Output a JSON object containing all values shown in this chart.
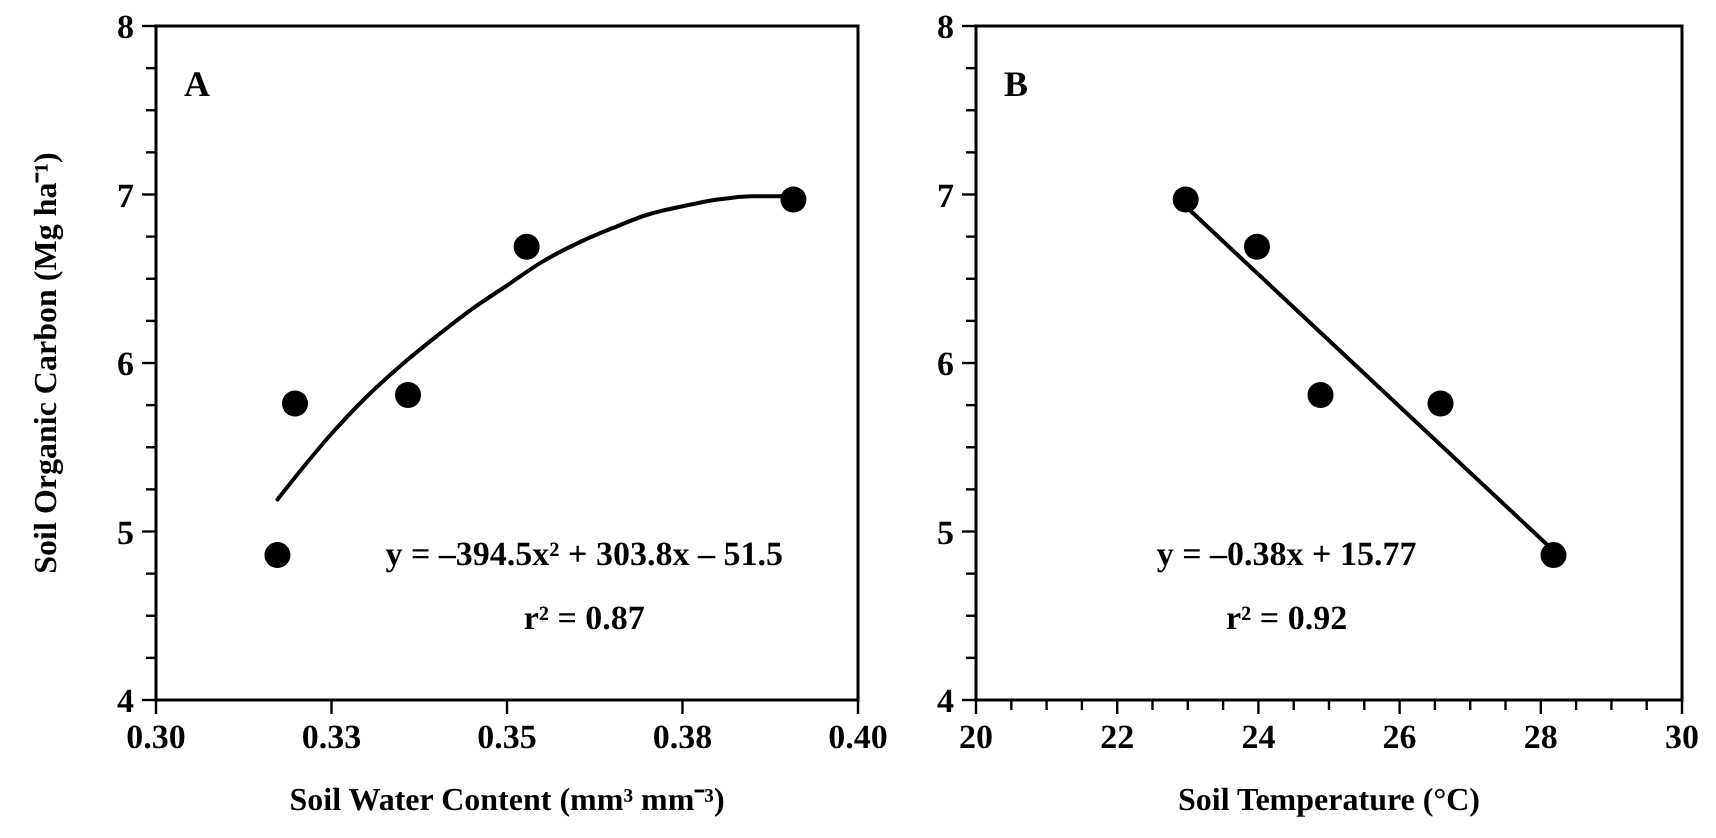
{
  "chart_data": [
    {
      "type": "scatter",
      "ylabel": "Soil Organic Carbon (Mg ha⁻¹)",
      "xlabel": "Soil Water Content (mm³ mm⁻³)",
      "annotations": [
        "A",
        "y = –394.5x² + 303.8x – 51.5",
        "r² = 0.87"
      ],
      "xlim": [
        0.3,
        0.4
      ],
      "xticks": [
        {
          "value": 0.3,
          "label": "0.30"
        },
        {
          "value": 0.325,
          "label": "0.33"
        },
        {
          "value": 0.35,
          "label": "0.35"
        },
        {
          "value": 0.375,
          "label": "0.38"
        },
        {
          "value": 0.4,
          "label": "0.40"
        }
      ],
      "ylim": [
        4,
        8
      ],
      "yticks": [
        4,
        {
          "value": 4.25,
          "label": null
        },
        {
          "value": 4.5,
          "label": null
        },
        {
          "value": 4.75,
          "label": null
        },
        5,
        {
          "value": 5.25,
          "label": null
        },
        {
          "value": 5.5,
          "label": null
        },
        {
          "value": 5.75,
          "label": null
        },
        6,
        {
          "value": 6.25,
          "label": null
        },
        {
          "value": 6.5,
          "label": null
        },
        {
          "value": 6.75,
          "label": null
        },
        7,
        {
          "value": 7.25,
          "label": null
        },
        {
          "value": 7.5,
          "label": null
        },
        {
          "value": 7.75,
          "label": null
        },
        8
      ],
      "series": [
        {
          "color": "#000000",
          "marker": "circle",
          "x": [
            0.3173,
            0.3198,
            0.3359,
            0.3528,
            0.3908
          ],
          "values": [
            4.86,
            5.76,
            5.81,
            6.69,
            6.97
          ]
        },
        {
          "type": "line",
          "color": "#000000",
          "marker": "none",
          "line_style": "solid",
          "x": [
            0.3173,
            0.325,
            0.33,
            0.335,
            0.34,
            0.345,
            0.35,
            0.355,
            0.36,
            0.365,
            0.37,
            0.375,
            0.38,
            0.385,
            0.3908
          ],
          "values": [
            5.19,
            5.58,
            5.8,
            5.99,
            6.16,
            6.32,
            6.46,
            6.6,
            6.71,
            6.8,
            6.88,
            6.93,
            6.97,
            6.99,
            6.99
          ]
        }
      ]
    },
    {
      "type": "scatter",
      "xlabel": "Soil Temperature (°C)",
      "annotations": [
        "B",
        "y = –0.38x + 15.77",
        "r² = 0.92"
      ],
      "xlim": [
        20,
        30
      ],
      "xticks": [
        20,
        {
          "value": 20.5,
          "label": null
        },
        {
          "value": 21,
          "label": null
        },
        {
          "value": 21.5,
          "label": null
        },
        22,
        {
          "value": 22.5,
          "label": null
        },
        {
          "value": 23,
          "label": null
        },
        {
          "value": 23.5,
          "label": null
        },
        24,
        {
          "value": 24.5,
          "label": null
        },
        {
          "value": 25,
          "label": null
        },
        {
          "value": 25.5,
          "label": null
        },
        26,
        {
          "value": 26.5,
          "label": null
        },
        {
          "value": 27,
          "label": null
        },
        {
          "value": 27.5,
          "label": null
        },
        28,
        {
          "value": 28.5,
          "label": null
        },
        {
          "value": 29,
          "label": null
        },
        {
          "value": 29.5,
          "label": null
        },
        30
      ],
      "ylim": [
        4,
        8
      ],
      "yticks": [
        4,
        {
          "value": 4.25,
          "label": null
        },
        {
          "value": 4.5,
          "label": null
        },
        {
          "value": 4.75,
          "label": null
        },
        5,
        {
          "value": 5.25,
          "label": null
        },
        {
          "value": 5.5,
          "label": null
        },
        {
          "value": 5.75,
          "label": null
        },
        6,
        {
          "value": 6.25,
          "label": null
        },
        {
          "value": 6.5,
          "label": null
        },
        {
          "value": 6.75,
          "label": null
        },
        7,
        {
          "value": 7.25,
          "label": null
        },
        {
          "value": 7.5,
          "label": null
        },
        {
          "value": 7.75,
          "label": null
        },
        8
      ],
      "series": [
        {
          "color": "#000000",
          "marker": "circle",
          "x": [
            22.97,
            23.98,
            24.88,
            26.58,
            28.18
          ],
          "values": [
            6.97,
            6.69,
            5.81,
            5.76,
            4.86
          ]
        },
        {
          "type": "line",
          "color": "#000000",
          "marker": "none",
          "line_style": "solid",
          "x": [
            22.97,
            28.12
          ],
          "values": [
            6.93,
            4.91
          ]
        }
      ]
    }
  ]
}
